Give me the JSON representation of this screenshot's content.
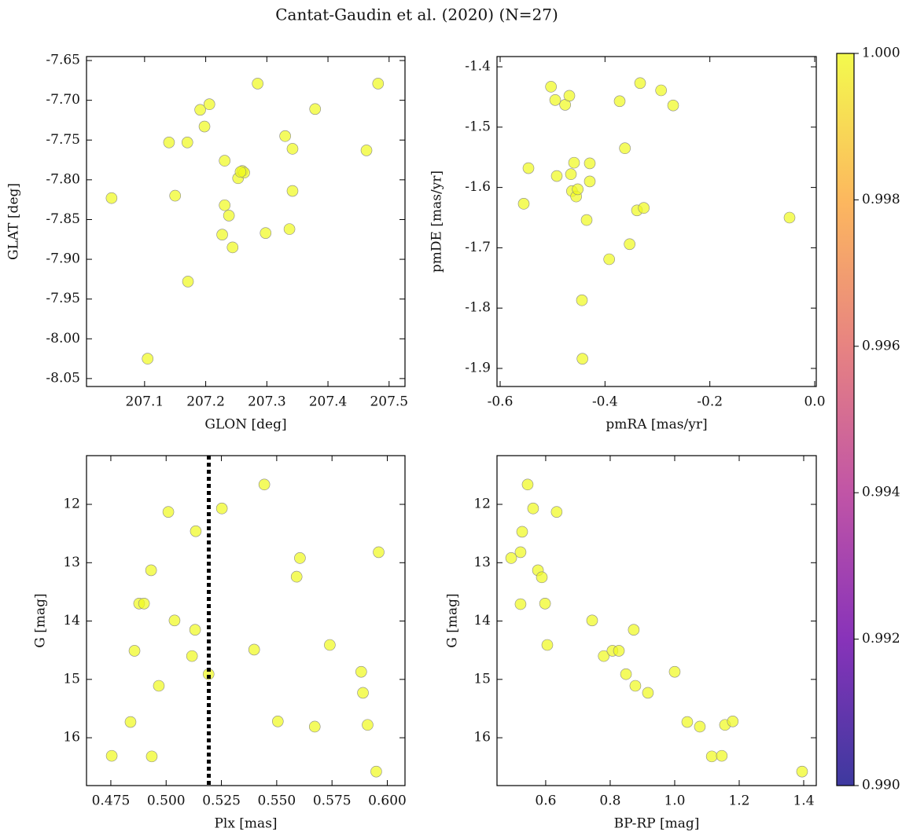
{
  "title": "Cantat-Gaudin et al. (2020) (N=27)",
  "chart_data": [
    {
      "type": "scatter",
      "xlabel": "GLON [deg]",
      "ylabel": "GLAT [deg]",
      "color": "#f0f921",
      "x": [
        207.046,
        207.105,
        207.14,
        207.15,
        207.17,
        207.171,
        207.191,
        207.198,
        207.206,
        207.231,
        207.231,
        207.238,
        207.227,
        207.244,
        207.253,
        207.26,
        207.263,
        207.257,
        207.285,
        207.298,
        207.33,
        207.342,
        207.342,
        207.337,
        207.379,
        207.463,
        207.482
      ],
      "values": [
        -7.823,
        -8.025,
        -7.753,
        -7.82,
        -7.753,
        -7.928,
        -7.712,
        -7.733,
        -7.705,
        -7.776,
        -7.832,
        -7.845,
        -7.869,
        -7.885,
        -7.798,
        -7.789,
        -7.791,
        -7.79,
        -7.679,
        -7.867,
        -7.745,
        -7.761,
        -7.814,
        -7.862,
        -7.711,
        -7.763,
        -7.679
      ],
      "xlim": [
        207.005,
        207.526
      ],
      "ylim": [
        -8.06,
        -7.645
      ],
      "xticks": [
        207.1,
        207.2,
        207.3,
        207.4,
        207.5
      ],
      "yticks": [
        -7.65,
        {
          "value": -7.7,
          "label": "-7.70"
        },
        -7.75,
        {
          "value": -7.8,
          "label": "-7.80"
        },
        -7.85,
        {
          "value": -7.9,
          "label": "-7.90"
        },
        -7.95,
        {
          "value": -8.0,
          "label": "-8.00"
        },
        -8.05
      ]
    },
    {
      "type": "scatter",
      "xlabel": "pmRA [mas/yr]",
      "ylabel": "pmDE [mas/yr]",
      "color": "#f0f921",
      "x": [
        -0.555,
        -0.546,
        -0.503,
        -0.495,
        -0.492,
        -0.476,
        -0.468,
        -0.465,
        -0.463,
        -0.459,
        -0.455,
        -0.452,
        -0.444,
        -0.443,
        -0.435,
        -0.429,
        -0.429,
        -0.392,
        -0.372,
        -0.362,
        -0.353,
        -0.339,
        -0.333,
        -0.326,
        -0.293,
        -0.27,
        -0.048
      ],
      "values": [
        -1.627,
        -1.568,
        -1.433,
        -1.455,
        -1.581,
        -1.463,
        -1.448,
        -1.578,
        -1.606,
        -1.559,
        -1.615,
        -1.603,
        -1.787,
        -1.884,
        -1.654,
        -1.59,
        -1.56,
        -1.719,
        -1.457,
        -1.535,
        -1.694,
        -1.638,
        -1.427,
        -1.634,
        -1.439,
        -1.464,
        -1.65
      ],
      "xlim": [
        -0.606,
        0.003
      ],
      "ylim": [
        -1.93,
        -1.383
      ],
      "xticks": [
        -0.6,
        -0.4,
        -0.2,
        {
          "value": 0,
          "label": "0.0"
        }
      ],
      "yticks": [
        -1.4,
        -1.5,
        -1.6,
        -1.7,
        -1.8,
        -1.9
      ]
    },
    {
      "type": "scatter",
      "xlabel": "Plx [mas]",
      "ylabel": "G [mag]",
      "color": "#f0f921",
      "x": [
        0.4754,
        0.4839,
        0.4857,
        0.4878,
        0.49,
        0.4932,
        0.4935,
        0.4967,
        0.501,
        0.5038,
        0.5117,
        0.5131,
        0.5134,
        0.5192,
        0.5252,
        0.5398,
        0.5444,
        0.5505,
        0.559,
        0.5605,
        0.5672,
        0.574,
        0.5882,
        0.589,
        0.5911,
        0.595,
        0.5961
      ],
      "values": [
        16.31,
        15.73,
        14.51,
        13.7,
        13.7,
        13.13,
        16.32,
        15.11,
        12.13,
        13.99,
        14.6,
        14.15,
        12.46,
        14.91,
        12.07,
        14.49,
        11.66,
        15.72,
        13.24,
        12.92,
        15.81,
        14.41,
        14.87,
        15.23,
        15.78,
        16.58,
        12.82
      ],
      "xlim": [
        0.464,
        0.608
      ],
      "ylim": [
        16.82,
        11.165
      ],
      "xticks": [
        0.475,
        {
          "value": 0.5,
          "label": "0.500"
        },
        0.525,
        {
          "value": 0.55,
          "label": "0.550"
        },
        0.575,
        {
          "value": 0.6,
          "label": "0.600"
        }
      ],
      "yticks": [
        12,
        13,
        14,
        15,
        16
      ],
      "vline": 0.5193
    },
    {
      "type": "scatter",
      "xlabel": "BP-RP [mag]",
      "ylabel": "G [mag]",
      "color": "#f0f921",
      "x": [
        0.493,
        0.522,
        0.522,
        0.527,
        0.544,
        0.561,
        0.576,
        0.588,
        0.598,
        0.634,
        0.605,
        0.744,
        0.78,
        0.807,
        0.827,
        0.873,
        0.849,
        0.878,
        0.917,
        1.0,
        1.039,
        1.078,
        1.115,
        1.146,
        1.156,
        1.18,
        1.395
      ],
      "values": [
        12.92,
        12.82,
        13.71,
        12.47,
        11.66,
        12.07,
        13.13,
        13.25,
        13.7,
        12.13,
        14.41,
        13.99,
        14.6,
        14.51,
        14.51,
        14.15,
        14.91,
        15.11,
        15.23,
        14.87,
        15.73,
        15.81,
        16.32,
        16.31,
        15.78,
        15.72,
        16.58
      ],
      "xlim": [
        0.449,
        1.439
      ],
      "ylim": [
        16.82,
        11.165
      ],
      "xticks": [
        0.6,
        0.8,
        {
          "value": 1.0,
          "label": "1.0"
        },
        1.2,
        1.4
      ],
      "yticks": [
        12,
        13,
        14,
        15,
        16
      ]
    }
  ],
  "colorbar": {
    "lim": [
      0.99,
      1.0
    ],
    "ticks": [
      {
        "value": 0.99,
        "label": "0.990"
      },
      0.992,
      0.994,
      0.996,
      0.998,
      {
        "value": 1.0,
        "label": "1.000"
      }
    ],
    "colors": [
      "#0d0887",
      "#6a00a8",
      "#b12a90",
      "#e16462",
      "#fca636",
      "#f0f921"
    ]
  }
}
